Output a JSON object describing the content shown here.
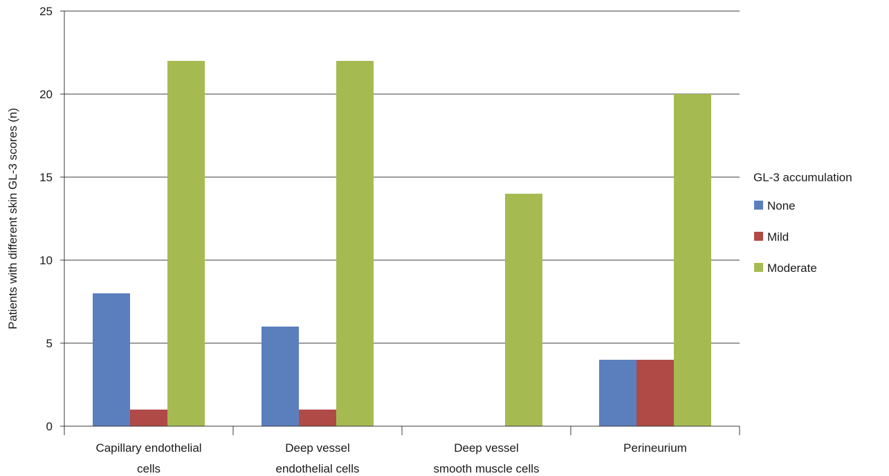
{
  "chart_data": {
    "type": "bar",
    "ylabel": "Patients with different skin GL-3 scores (n)",
    "xlabel": "",
    "ylim": [
      0,
      25
    ],
    "yticks": [
      0,
      5,
      10,
      15,
      20,
      25
    ],
    "grid": true,
    "legend_position": "right",
    "legend_title": "GL-3 accumulation",
    "categories": [
      [
        "Capillary endothelial",
        "cells"
      ],
      [
        "Deep vessel",
        "endothelial cells"
      ],
      [
        "Deep vessel",
        "smooth muscle cells"
      ],
      [
        "Perineurium"
      ]
    ],
    "series": [
      {
        "name": "None",
        "color": "#5b7fbd",
        "values": [
          8,
          6,
          0,
          4
        ]
      },
      {
        "name": "Mild",
        "color": "#b04a46",
        "values": [
          1,
          1,
          0,
          4
        ]
      },
      {
        "name": "Moderate",
        "color": "#a5bb51",
        "values": [
          22,
          22,
          14,
          20
        ]
      }
    ]
  }
}
